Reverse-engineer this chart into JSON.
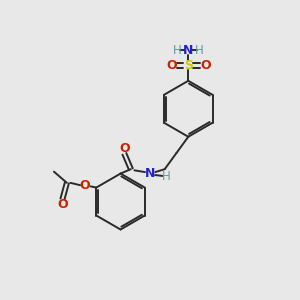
{
  "bg_color": "#e8e8e8",
  "bond_color": "#2a2a2a",
  "colors": {
    "N": "#2222cc",
    "O": "#cc2200",
    "S": "#cccc00",
    "H": "#669999"
  },
  "lw": 1.4
}
